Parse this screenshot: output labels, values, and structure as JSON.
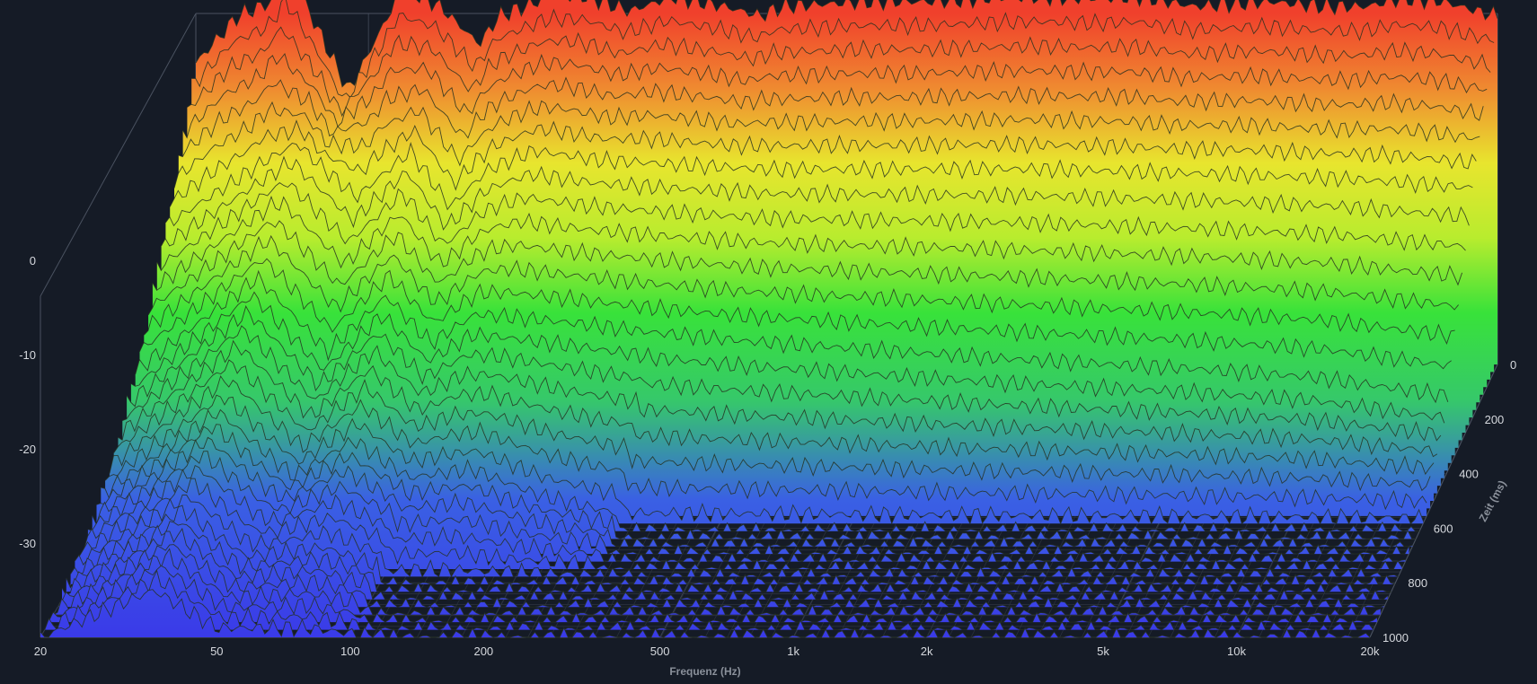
{
  "chart_data": {
    "type": "waterfall-3d",
    "x_axis": {
      "label": "Frequenz (Hz)",
      "scale": "log",
      "range": [
        20,
        20000
      ],
      "ticks": [
        {
          "value": 20,
          "label": "20"
        },
        {
          "value": 50,
          "label": "50"
        },
        {
          "value": 100,
          "label": "100"
        },
        {
          "value": 200,
          "label": "200"
        },
        {
          "value": 500,
          "label": "500"
        },
        {
          "value": 1000,
          "label": "1k"
        },
        {
          "value": 2000,
          "label": "2k"
        },
        {
          "value": 5000,
          "label": "5k"
        },
        {
          "value": 10000,
          "label": "10k"
        },
        {
          "value": 20000,
          "label": "20k"
        }
      ]
    },
    "y_axis": {
      "label": "",
      "range": [
        -40,
        0
      ],
      "ticks": [
        {
          "value": 0,
          "label": "0"
        },
        {
          "value": -10,
          "label": "-10"
        },
        {
          "value": -20,
          "label": "-20"
        },
        {
          "value": -30,
          "label": "-30"
        }
      ]
    },
    "z_axis": {
      "label": "Zeit (ms)",
      "range": [
        0,
        1000
      ],
      "ticks": [
        {
          "value": 0,
          "label": "0"
        },
        {
          "value": 200,
          "label": "200"
        },
        {
          "value": 400,
          "label": "400"
        },
        {
          "value": 600,
          "label": "600"
        },
        {
          "value": 800,
          "label": "800"
        },
        {
          "value": 1000,
          "label": "1000"
        }
      ]
    },
    "slices": [
      {
        "time_ms": 0,
        "peaks": [
          [
            20,
            -8
          ],
          [
            25,
            -3
          ],
          [
            30,
            -1.5
          ],
          [
            33,
            1.5
          ],
          [
            45,
            -11
          ],
          [
            60,
            0
          ],
          [
            73,
            -2
          ],
          [
            90,
            -6
          ],
          [
            100,
            -3
          ],
          [
            115,
            -2
          ],
          [
            130,
            -1
          ],
          [
            160,
            -1
          ],
          [
            200,
            -2.5
          ],
          [
            250,
            -1
          ],
          [
            330,
            -2
          ],
          [
            400,
            -3
          ],
          [
            450,
            -2
          ],
          [
            700,
            -1.5
          ],
          [
            1000,
            -1.5
          ],
          [
            1300,
            -1.2
          ],
          [
            1800,
            -1
          ],
          [
            2400,
            -1.2
          ],
          [
            3000,
            -1
          ],
          [
            4000,
            -2
          ],
          [
            6000,
            -1.5
          ],
          [
            8000,
            -2
          ],
          [
            10000,
            -2
          ],
          [
            12000,
            -1.2
          ],
          [
            15000,
            -1.5
          ],
          [
            18000,
            -2.5
          ],
          [
            20000,
            -3
          ]
        ]
      },
      {
        "time_ms": 200,
        "peaks": [
          [
            20,
            -20
          ],
          [
            40,
            -11
          ],
          [
            55,
            -17
          ],
          [
            73,
            -12
          ],
          [
            90,
            -18
          ],
          [
            110,
            -14
          ],
          [
            140,
            -12
          ],
          [
            200,
            -13
          ],
          [
            300,
            -13.5
          ],
          [
            500,
            -14
          ],
          [
            1000,
            -14
          ],
          [
            2000,
            -14
          ],
          [
            5000,
            -14.5
          ],
          [
            10000,
            -15
          ],
          [
            20000,
            -16
          ]
        ]
      },
      {
        "time_ms": 400,
        "peaks": [
          [
            20,
            -30
          ],
          [
            38,
            -20
          ],
          [
            55,
            -28
          ],
          [
            75,
            -22
          ],
          [
            95,
            -27
          ],
          [
            120,
            -24
          ],
          [
            200,
            -25
          ],
          [
            300,
            -26
          ],
          [
            500,
            -27
          ],
          [
            1000,
            -28
          ],
          [
            2000,
            -29
          ],
          [
            5000,
            -30
          ],
          [
            10000,
            -31
          ],
          [
            20000,
            -33
          ]
        ]
      },
      {
        "time_ms": 600,
        "peaks": [
          [
            20,
            -36
          ],
          [
            37,
            -27
          ],
          [
            55,
            -34
          ],
          [
            75,
            -30
          ],
          [
            100,
            -34
          ],
          [
            140,
            -33
          ],
          [
            200,
            -36
          ],
          [
            300,
            -38
          ]
        ]
      },
      {
        "time_ms": 800,
        "peaks": [
          [
            20,
            -39
          ],
          [
            36,
            -32
          ],
          [
            50,
            -37
          ],
          [
            75,
            -36
          ],
          [
            100,
            -38
          ]
        ]
      },
      {
        "time_ms": 1000,
        "peaks": [
          [
            20,
            -40
          ],
          [
            36,
            -35
          ],
          [
            50,
            -39
          ],
          [
            80,
            -39
          ],
          [
            120,
            -40
          ]
        ]
      }
    ]
  }
}
